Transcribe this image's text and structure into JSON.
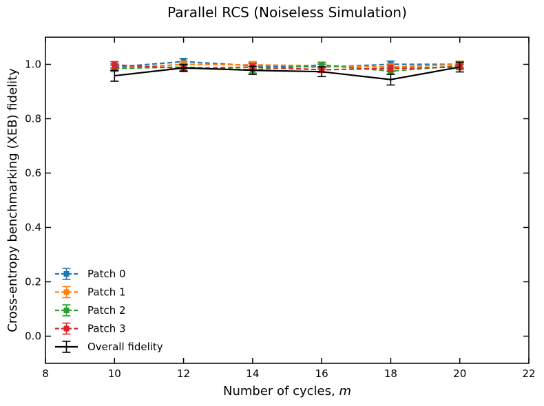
{
  "chart_data": {
    "type": "line",
    "title": "Parallel RCS (Noiseless Simulation)",
    "xlabel_prefix": "Number of cycles, ",
    "xlabel_var": "m",
    "ylabel": "Cross-entropy benchmarking (XEB) fidelity",
    "xlim": [
      8,
      22
    ],
    "ylim": [
      -0.1,
      1.1
    ],
    "xticks": [
      8,
      10,
      12,
      14,
      16,
      18,
      20,
      22
    ],
    "yticks": [
      0.0,
      0.2,
      0.4,
      0.6,
      0.8,
      1.0
    ],
    "x": [
      10,
      12,
      14,
      16,
      18,
      20
    ],
    "legend_position": "lower-left",
    "grid": false,
    "series": [
      {
        "name": "Patch 0",
        "color": "#1f77b4",
        "dashed": true,
        "values": [
          0.99,
          1.01,
          0.995,
          0.99,
          1.0,
          1.0
        ],
        "errors": [
          0.012,
          0.012,
          0.012,
          0.01,
          0.012,
          0.01
        ]
      },
      {
        "name": "Patch 1",
        "color": "#ff7f0e",
        "dashed": true,
        "values": [
          0.985,
          1.0,
          0.998,
          0.995,
          0.99,
          1.0
        ],
        "errors": [
          0.012,
          0.012,
          0.012,
          0.01,
          0.012,
          0.012
        ]
      },
      {
        "name": "Patch 2",
        "color": "#2ca02c",
        "dashed": true,
        "values": [
          0.985,
          0.99,
          0.98,
          0.998,
          0.975,
          0.995
        ],
        "errors": [
          0.012,
          0.012,
          0.012,
          0.01,
          0.012,
          0.01
        ]
      },
      {
        "name": "Patch 3",
        "color": "#d62728",
        "dashed": true,
        "values": [
          0.998,
          0.985,
          0.99,
          0.98,
          0.985,
          0.99
        ],
        "errors": [
          0.012,
          0.012,
          0.012,
          0.01,
          0.012,
          0.01
        ]
      },
      {
        "name": "Overall fidelity",
        "color": "#000000",
        "dashed": false,
        "values": [
          0.958,
          0.987,
          0.978,
          0.973,
          0.944,
          0.99
        ],
        "errors": [
          0.02,
          0.012,
          0.015,
          0.018,
          0.02,
          0.018
        ]
      }
    ]
  }
}
